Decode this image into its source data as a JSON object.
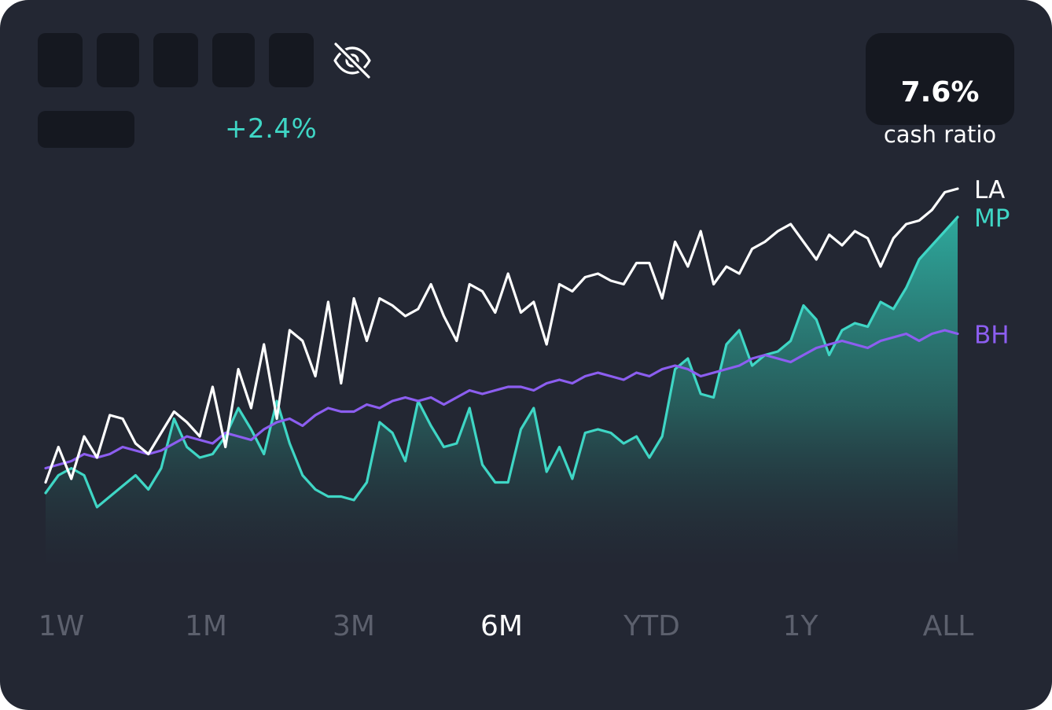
{
  "header": {
    "change_pct": "+2.4%",
    "balance_hidden": true
  },
  "cash": {
    "value": "7.6%",
    "label": "cash ratio"
  },
  "colors": {
    "background": "#232733",
    "LA": "#ffffff",
    "MP": "#3fd6c5",
    "BH": "#8c5ef0",
    "tab_inactive": "#5c606d",
    "tab_active": "#ffffff"
  },
  "icons": {
    "visibility_toggle": "eye-off-icon"
  },
  "tabs": [
    {
      "label": "1W",
      "active": false
    },
    {
      "label": "1M",
      "active": false
    },
    {
      "label": "3M",
      "active": false
    },
    {
      "label": "6M",
      "active": true
    },
    {
      "label": "YTD",
      "active": false
    },
    {
      "label": "1Y",
      "active": false
    },
    {
      "label": "ALL",
      "active": false
    }
  ],
  "chart_data": {
    "type": "line",
    "title": "",
    "xlabel": "",
    "ylabel": "",
    "ylim": [
      0,
      100
    ],
    "grid": false,
    "legend": "right-end labels",
    "series": [
      {
        "name": "LA",
        "values": [
          17,
          27,
          18,
          30,
          24,
          36,
          35,
          28,
          25,
          31,
          37,
          34,
          30,
          44,
          27,
          49,
          38,
          56,
          35,
          60,
          57,
          47,
          68,
          45,
          69,
          57,
          69,
          67,
          64,
          66,
          73,
          64,
          57,
          73,
          71,
          65,
          76,
          65,
          68,
          56,
          73,
          71,
          75,
          76,
          74,
          73,
          79,
          79,
          69,
          85,
          78,
          88,
          73,
          78,
          76,
          83,
          85,
          88,
          90,
          85,
          80,
          87,
          84,
          88,
          86,
          78,
          86,
          90,
          91,
          94,
          99,
          100
        ]
      },
      {
        "name": "MP",
        "values": [
          14,
          19,
          21,
          19,
          10,
          13,
          16,
          19,
          15,
          21,
          35,
          27,
          24,
          25,
          30,
          38,
          32,
          25,
          40,
          28,
          19,
          15,
          13,
          13,
          12,
          17,
          34,
          31,
          23,
          40,
          33,
          27,
          28,
          38,
          22,
          17,
          17,
          32,
          38,
          20,
          27,
          18,
          31,
          32,
          31,
          28,
          30,
          24,
          30,
          49,
          52,
          42,
          41,
          56,
          60,
          50,
          53,
          54,
          57,
          67,
          63,
          53,
          60,
          62,
          61,
          68,
          66,
          72,
          80,
          84,
          88,
          92
        ]
      },
      {
        "name": "BH",
        "values": [
          21,
          22,
          23,
          25,
          24,
          25,
          27,
          26,
          25,
          26,
          28,
          30,
          29,
          28,
          31,
          30,
          29,
          32,
          34,
          35,
          33,
          36,
          38,
          37,
          37,
          39,
          38,
          40,
          41,
          40,
          41,
          39,
          41,
          43,
          42,
          43,
          44,
          44,
          43,
          45,
          46,
          45,
          47,
          48,
          47,
          46,
          48,
          47,
          49,
          50,
          49,
          47,
          48,
          49,
          50,
          52,
          53,
          52,
          51,
          53,
          55,
          56,
          57,
          56,
          55,
          57,
          58,
          59,
          57,
          59,
          60,
          59
        ]
      }
    ]
  }
}
